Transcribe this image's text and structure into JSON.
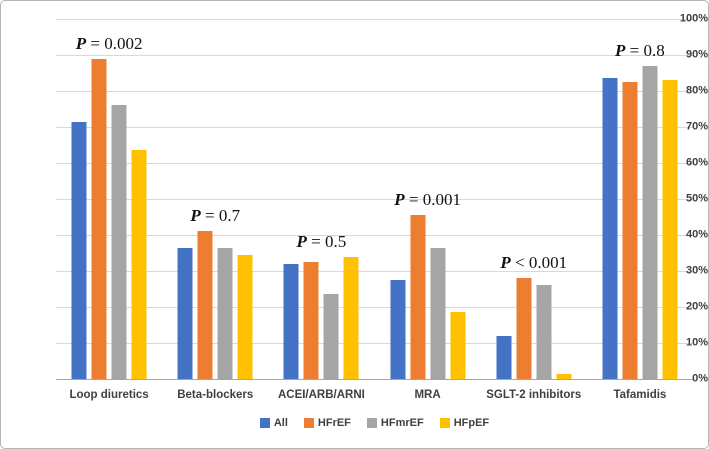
{
  "chart_data": {
    "type": "bar",
    "title": "",
    "xlabel": "",
    "ylabel": "",
    "categories": [
      "Loop diuretics",
      "Beta-blockers",
      "ACEI/ARB/ARNI",
      "MRA",
      "SGLT-2 inhibitors",
      "Tafamidis"
    ],
    "series": [
      {
        "name": "All",
        "color": "#4472C4",
        "values": [
          71.5,
          36.5,
          32.0,
          27.5,
          12.0,
          83.5
        ]
      },
      {
        "name": "HFrEF",
        "color": "#ED7D31",
        "values": [
          89.0,
          41.0,
          32.5,
          45.5,
          28.0,
          82.5
        ]
      },
      {
        "name": "HFmrEF",
        "color": "#A5A5A5",
        "values": [
          76.0,
          36.5,
          23.5,
          36.5,
          26.0,
          87.0
        ]
      },
      {
        "name": "HFpEF",
        "color": "#FFC000",
        "values": [
          63.5,
          34.5,
          34.0,
          18.5,
          1.5,
          83.0
        ]
      }
    ],
    "annotations": [
      "P = 0.002",
      "P = 0.7",
      "P = 0.5",
      "P = 0.001",
      "P < 0.001",
      "P = 0.8"
    ],
    "y_ticks": [
      "0%",
      "10%",
      "20%",
      "30%",
      "40%",
      "50%",
      "60%",
      "70%",
      "80%",
      "90%",
      "100%"
    ],
    "ylim": [
      0,
      100
    ],
    "grid": true,
    "legend_position": "bottom",
    "gridline_color": "#d9d9d9",
    "axis_text_color": "#404040"
  }
}
